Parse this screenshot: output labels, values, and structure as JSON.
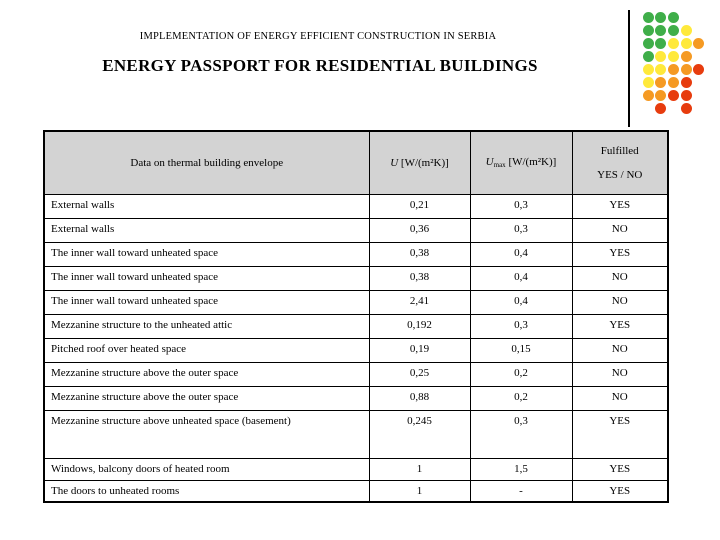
{
  "slide": {
    "kicker": "IMPLEMENTATION OF ENERGY EFFICIENT CONSTRUCTION IN SERBIA",
    "title": "ENERGY PASSPORT FOR RESIDENTIAL BUILDINGS"
  },
  "table": {
    "headers": {
      "envelope": "Data on thermal building envelope",
      "u_symbol": "U",
      "u_unit": " [W/(m²K)]",
      "umax_symbol": "U",
      "umax_sub": "max",
      "umax_unit": " [W/(m²K)]",
      "fulfilled_line1": "Fulfilled",
      "fulfilled_line2": "YES / NO"
    },
    "rows": [
      {
        "name": "External walls",
        "u": "0,21",
        "umax": "0,3",
        "fulfilled": "YES"
      },
      {
        "name": "External walls",
        "u": "0,36",
        "umax": "0,3",
        "fulfilled": "NO"
      },
      {
        "name": "The inner wall toward unheated space",
        "u": "0,38",
        "umax": "0,4",
        "fulfilled": "YES"
      },
      {
        "name": "The inner wall toward unheated space",
        "u": "0,38",
        "umax": "0,4",
        "fulfilled": "NO"
      },
      {
        "name": "The inner wall toward unheated space",
        "u": "2,41",
        "umax": "0,4",
        "fulfilled": "NO"
      },
      {
        "name": "Mezzanine structure to the unheated attic",
        "u": "0,192",
        "umax": "0,3",
        "fulfilled": "YES"
      },
      {
        "name": "Pitched roof over heated space",
        "u": "0,19",
        "umax": "0,15",
        "fulfilled": "NO"
      },
      {
        "name": "Mezzanine structure above the outer space",
        "u": "0,25",
        "umax": "0,2",
        "fulfilled": "NO"
      },
      {
        "name": "Mezzanine structure above the outer space",
        "u": "0,88",
        "umax": "0,2",
        "fulfilled": "NO"
      },
      {
        "name": "Mezzanine structure above unheated space (basement)",
        "u": "0,245",
        "umax": "0,3",
        "fulfilled": "YES"
      },
      {
        "name": "Windows, balcony doors of heated room",
        "u": "1",
        "umax": "1,5",
        "fulfilled": "YES"
      },
      {
        "name": "The doors to unheated rooms",
        "u": "1",
        "umax": "-",
        "fulfilled": "YES"
      }
    ]
  },
  "decoration": {
    "dot_colors": {
      "green": "#3fae49",
      "yellow": "#ffe93b",
      "orange": "#f59a23",
      "red": "#e73c0e"
    },
    "dot_grid": [
      [
        "green",
        "green",
        "green",
        null,
        null
      ],
      [
        "green",
        "green",
        "green",
        "yellow",
        null
      ],
      [
        "green",
        "green",
        "yellow",
        "yellow",
        "orange"
      ],
      [
        "green",
        "yellow",
        "yellow",
        "orange",
        null
      ],
      [
        "yellow",
        "yellow",
        "orange",
        "orange",
        "red"
      ],
      [
        "yellow",
        "orange",
        "orange",
        "red",
        null
      ],
      [
        "orange",
        "orange",
        "red",
        "red",
        null
      ],
      [
        null,
        "red",
        null,
        "red",
        null
      ]
    ]
  }
}
